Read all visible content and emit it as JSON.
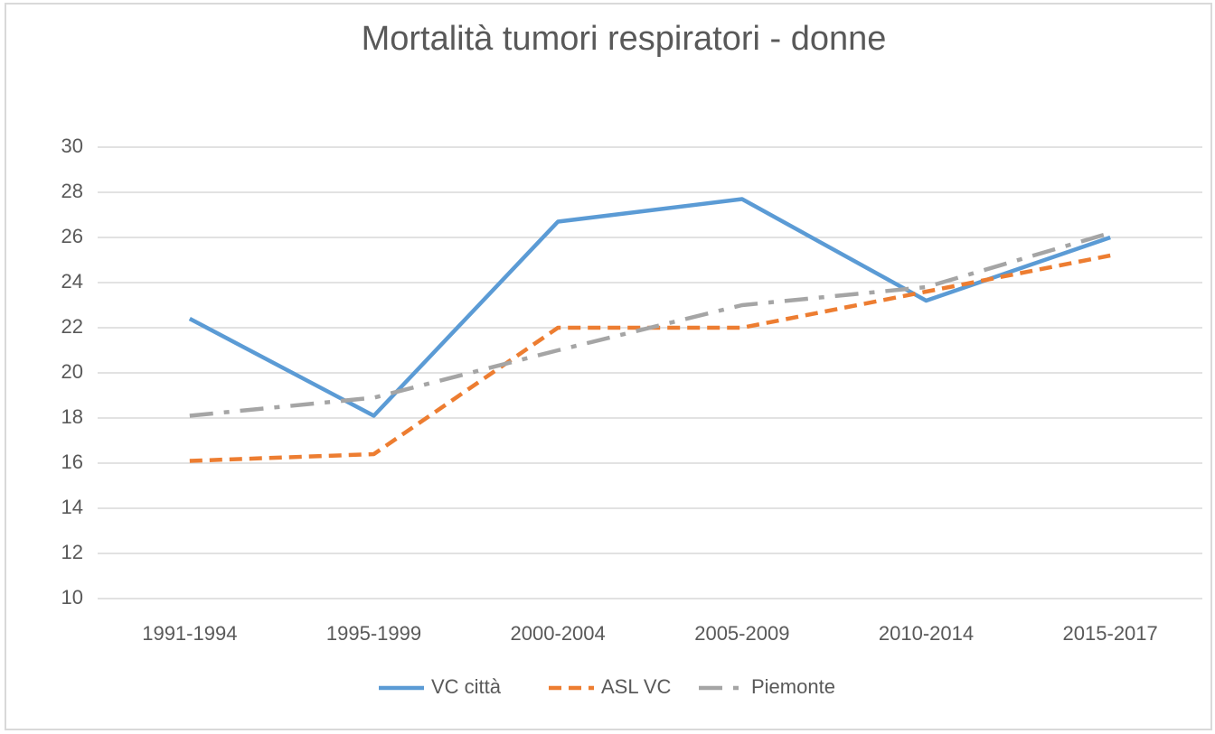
{
  "chart_data": {
    "type": "line",
    "title": "Mortalità tumori respiratori - donne",
    "categories": [
      "1991-1994",
      "1995-1999",
      "2000-2004",
      "2005-2009",
      "2010-2014",
      "2015-2017"
    ],
    "series": [
      {
        "name": "VC città",
        "color": "#5b9bd5",
        "line_style": "solid",
        "values": [
          22.4,
          18.1,
          26.7,
          27.7,
          23.2,
          26.0
        ]
      },
      {
        "name": "ASL VC",
        "color": "#ed7d31",
        "line_style": "dash",
        "values": [
          16.1,
          16.4,
          22.0,
          22.0,
          23.6,
          25.2
        ]
      },
      {
        "name": "Piemonte",
        "color": "#a5a5a5",
        "line_style": "dashdot",
        "values": [
          18.1,
          18.9,
          21.0,
          23.0,
          23.8,
          26.2
        ]
      }
    ],
    "ylim": [
      10,
      30
    ],
    "yticks": [
      10,
      12,
      14,
      16,
      18,
      20,
      22,
      24,
      26,
      28,
      30
    ],
    "grid": true,
    "legend": "bottom"
  }
}
